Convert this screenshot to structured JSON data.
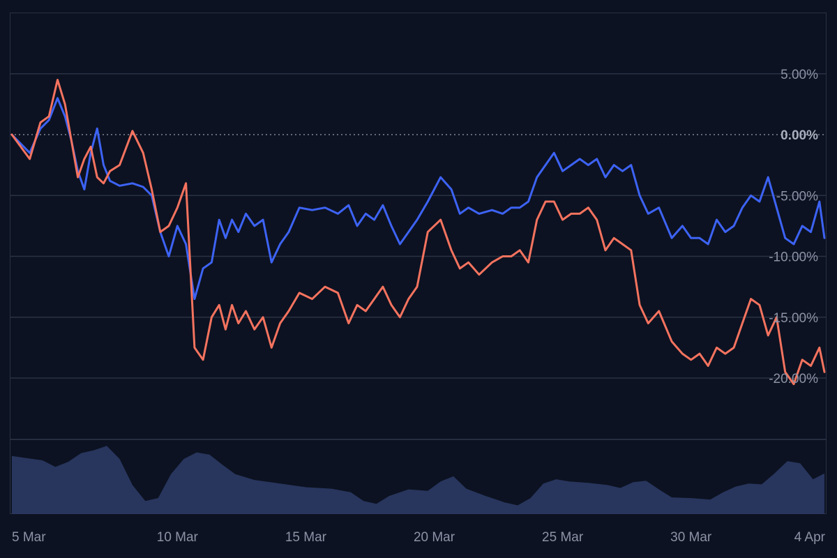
{
  "chart_data": {
    "type": "line",
    "title": "",
    "xlabel": "",
    "ylabel": "",
    "x_range": [
      "2025-03-04",
      "2025-04-04"
    ],
    "ylim": [
      -25,
      10
    ],
    "y_ticks": [
      "5.00%",
      "0.00%",
      "-5.00%",
      "-10.00%",
      "-15.00%",
      "-20.00%"
    ],
    "y_tick_values": [
      5,
      0,
      -5,
      -10,
      -15,
      -20
    ],
    "x_ticks": [
      "5 Mar",
      "10 Mar",
      "15 Mar",
      "20 Mar",
      "25 Mar",
      "30 Mar",
      "4 Apr"
    ],
    "x_tick_dates": [
      "2025-03-05",
      "2025-03-10",
      "2025-03-15",
      "2025-03-20",
      "2025-03-25",
      "2025-03-30",
      "2025-04-04"
    ],
    "zero_line": "dotted",
    "grid": "horizontal",
    "series": [
      {
        "color": "#3d63f5",
        "points": [
          [
            "2025-03-04",
            0.0
          ],
          [
            "2025-03-04",
            -1.5
          ],
          [
            "2025-03-05",
            0.5
          ],
          [
            "2025-03-05",
            1.2
          ],
          [
            "2025-03-05",
            3.0
          ],
          [
            "2025-03-06",
            1.5
          ],
          [
            "2025-03-06",
            -0.5
          ],
          [
            "2025-03-06",
            -3.0
          ],
          [
            "2025-03-06",
            -4.5
          ],
          [
            "2025-03-07",
            -1.5
          ],
          [
            "2025-03-07",
            0.5
          ],
          [
            "2025-03-07",
            -2.5
          ],
          [
            "2025-03-07",
            -3.8
          ],
          [
            "2025-03-08",
            -4.2
          ],
          [
            "2025-03-08",
            -4.0
          ],
          [
            "2025-03-09",
            -4.3
          ],
          [
            "2025-03-09",
            -5.0
          ],
          [
            "2025-03-09",
            -8.0
          ],
          [
            "2025-03-10",
            -10.0
          ],
          [
            "2025-03-10",
            -7.5
          ],
          [
            "2025-03-10",
            -9.0
          ],
          [
            "2025-03-11",
            -13.5
          ],
          [
            "2025-03-11",
            -11.0
          ],
          [
            "2025-03-11",
            -10.5
          ],
          [
            "2025-03-12",
            -7.0
          ],
          [
            "2025-03-12",
            -8.5
          ],
          [
            "2025-03-12",
            -7.0
          ],
          [
            "2025-03-12",
            -8.0
          ],
          [
            "2025-03-13",
            -6.5
          ],
          [
            "2025-03-13",
            -7.5
          ],
          [
            "2025-03-13",
            -7.0
          ],
          [
            "2025-03-14",
            -10.5
          ],
          [
            "2025-03-14",
            -9.0
          ],
          [
            "2025-03-14",
            -8.0
          ],
          [
            "2025-03-15",
            -6.0
          ],
          [
            "2025-03-15",
            -6.2
          ],
          [
            "2025-03-16",
            -6.0
          ],
          [
            "2025-03-16",
            -6.5
          ],
          [
            "2025-03-17",
            -5.8
          ],
          [
            "2025-03-17",
            -7.5
          ],
          [
            "2025-03-17",
            -6.5
          ],
          [
            "2025-03-18",
            -7.0
          ],
          [
            "2025-03-18",
            -5.8
          ],
          [
            "2025-03-18",
            -7.5
          ],
          [
            "2025-03-19",
            -9.0
          ],
          [
            "2025-03-19",
            -8.0
          ],
          [
            "2025-03-19",
            -7.0
          ],
          [
            "2025-03-20",
            -5.5
          ],
          [
            "2025-03-20",
            -3.5
          ],
          [
            "2025-03-21",
            -4.5
          ],
          [
            "2025-03-21",
            -6.5
          ],
          [
            "2025-03-21",
            -6.0
          ],
          [
            "2025-03-22",
            -6.5
          ],
          [
            "2025-03-22",
            -6.2
          ],
          [
            "2025-03-23",
            -6.5
          ],
          [
            "2025-03-23",
            -6.0
          ],
          [
            "2025-03-23",
            -6.0
          ],
          [
            "2025-03-24",
            -5.5
          ],
          [
            "2025-03-24",
            -3.5
          ],
          [
            "2025-03-24",
            -2.5
          ],
          [
            "2025-03-25",
            -1.5
          ],
          [
            "2025-03-25",
            -3.0
          ],
          [
            "2025-03-25",
            -2.5
          ],
          [
            "2025-03-26",
            -2.0
          ],
          [
            "2025-03-26",
            -2.5
          ],
          [
            "2025-03-26",
            -2.0
          ],
          [
            "2025-03-27",
            -3.5
          ],
          [
            "2025-03-27",
            -2.5
          ],
          [
            "2025-03-27",
            -3.0
          ],
          [
            "2025-03-28",
            -2.5
          ],
          [
            "2025-03-28",
            -5.0
          ],
          [
            "2025-03-28",
            -6.5
          ],
          [
            "2025-03-29",
            -6.0
          ],
          [
            "2025-03-29",
            -8.5
          ],
          [
            "2025-03-30",
            -7.5
          ],
          [
            "2025-03-30",
            -8.5
          ],
          [
            "2025-03-30",
            -8.5
          ],
          [
            "2025-03-31",
            -9.0
          ],
          [
            "2025-03-31",
            -7.0
          ],
          [
            "2025-03-31",
            -8.0
          ],
          [
            "2025-04-01",
            -7.5
          ],
          [
            "2025-04-01",
            -6.0
          ],
          [
            "2025-04-01",
            -5.0
          ],
          [
            "2025-04-02",
            -5.5
          ],
          [
            "2025-04-02",
            -3.5
          ],
          [
            "2025-04-02",
            -6.0
          ],
          [
            "2025-04-03",
            -8.5
          ],
          [
            "2025-04-03",
            -9.0
          ],
          [
            "2025-04-03",
            -7.5
          ],
          [
            "2025-04-04",
            -8.0
          ],
          [
            "2025-04-04",
            -5.5
          ],
          [
            "2025-04-04",
            -8.5
          ]
        ]
      },
      {
        "color": "#f5735f",
        "points": [
          [
            "2025-03-04",
            0.0
          ],
          [
            "2025-03-04",
            -2.0
          ],
          [
            "2025-03-05",
            1.0
          ],
          [
            "2025-03-05",
            1.5
          ],
          [
            "2025-03-05",
            4.5
          ],
          [
            "2025-03-06",
            2.5
          ],
          [
            "2025-03-06",
            -0.5
          ],
          [
            "2025-03-06",
            -3.5
          ],
          [
            "2025-03-06",
            -2.0
          ],
          [
            "2025-03-07",
            -1.0
          ],
          [
            "2025-03-07",
            -3.5
          ],
          [
            "2025-03-07",
            -4.0
          ],
          [
            "2025-03-07",
            -3.0
          ],
          [
            "2025-03-08",
            -2.5
          ],
          [
            "2025-03-08",
            0.3
          ],
          [
            "2025-03-09",
            -1.5
          ],
          [
            "2025-03-09",
            -4.5
          ],
          [
            "2025-03-09",
            -8.0
          ],
          [
            "2025-03-10",
            -7.5
          ],
          [
            "2025-03-10",
            -6.0
          ],
          [
            "2025-03-10",
            -4.0
          ],
          [
            "2025-03-11",
            -17.5
          ],
          [
            "2025-03-11",
            -18.5
          ],
          [
            "2025-03-11",
            -15.0
          ],
          [
            "2025-03-12",
            -14.0
          ],
          [
            "2025-03-12",
            -16.0
          ],
          [
            "2025-03-12",
            -14.0
          ],
          [
            "2025-03-12",
            -15.5
          ],
          [
            "2025-03-13",
            -14.5
          ],
          [
            "2025-03-13",
            -16.0
          ],
          [
            "2025-03-13",
            -15.0
          ],
          [
            "2025-03-14",
            -17.5
          ],
          [
            "2025-03-14",
            -15.5
          ],
          [
            "2025-03-14",
            -14.5
          ],
          [
            "2025-03-15",
            -13.0
          ],
          [
            "2025-03-15",
            -13.5
          ],
          [
            "2025-03-16",
            -12.5
          ],
          [
            "2025-03-16",
            -13.0
          ],
          [
            "2025-03-17",
            -15.5
          ],
          [
            "2025-03-17",
            -14.0
          ],
          [
            "2025-03-17",
            -14.5
          ],
          [
            "2025-03-18",
            -13.5
          ],
          [
            "2025-03-18",
            -12.5
          ],
          [
            "2025-03-18",
            -14.0
          ],
          [
            "2025-03-19",
            -15.0
          ],
          [
            "2025-03-19",
            -13.5
          ],
          [
            "2025-03-19",
            -12.5
          ],
          [
            "2025-03-20",
            -8.0
          ],
          [
            "2025-03-20",
            -7.0
          ],
          [
            "2025-03-21",
            -9.5
          ],
          [
            "2025-03-21",
            -11.0
          ],
          [
            "2025-03-21",
            -10.5
          ],
          [
            "2025-03-22",
            -11.5
          ],
          [
            "2025-03-22",
            -10.5
          ],
          [
            "2025-03-23",
            -10.0
          ],
          [
            "2025-03-23",
            -10.0
          ],
          [
            "2025-03-23",
            -9.5
          ],
          [
            "2025-03-24",
            -10.5
          ],
          [
            "2025-03-24",
            -7.0
          ],
          [
            "2025-03-24",
            -5.5
          ],
          [
            "2025-03-25",
            -5.5
          ],
          [
            "2025-03-25",
            -7.0
          ],
          [
            "2025-03-25",
            -6.5
          ],
          [
            "2025-03-26",
            -6.5
          ],
          [
            "2025-03-26",
            -6.0
          ],
          [
            "2025-03-26",
            -7.0
          ],
          [
            "2025-03-27",
            -9.5
          ],
          [
            "2025-03-27",
            -8.5
          ],
          [
            "2025-03-27",
            -9.0
          ],
          [
            "2025-03-28",
            -9.5
          ],
          [
            "2025-03-28",
            -14.0
          ],
          [
            "2025-03-28",
            -15.5
          ],
          [
            "2025-03-29",
            -14.5
          ],
          [
            "2025-03-29",
            -17.0
          ],
          [
            "2025-03-30",
            -18.0
          ],
          [
            "2025-03-30",
            -18.5
          ],
          [
            "2025-03-30",
            -18.0
          ],
          [
            "2025-03-31",
            -19.0
          ],
          [
            "2025-03-31",
            -17.5
          ],
          [
            "2025-03-31",
            -18.0
          ],
          [
            "2025-04-01",
            -17.5
          ],
          [
            "2025-04-01",
            -15.5
          ],
          [
            "2025-04-01",
            -13.5
          ],
          [
            "2025-04-02",
            -14.0
          ],
          [
            "2025-04-02",
            -16.5
          ],
          [
            "2025-04-02",
            -15.0
          ],
          [
            "2025-04-03",
            -19.5
          ],
          [
            "2025-04-03",
            -20.5
          ],
          [
            "2025-04-03",
            -18.5
          ],
          [
            "2025-04-04",
            -19.0
          ],
          [
            "2025-04-04",
            -17.5
          ],
          [
            "2025-04-04",
            -19.5
          ]
        ]
      }
    ],
    "volume_panel": {
      "color": "#2b3a64",
      "scale": [
        0,
        100
      ],
      "points": [
        [
          "2025-03-04",
          80
        ],
        [
          "2025-03-05",
          74
        ],
        [
          "2025-03-05",
          65
        ],
        [
          "2025-03-06",
          72
        ],
        [
          "2025-03-06",
          84
        ],
        [
          "2025-03-07",
          88
        ],
        [
          "2025-03-07",
          94
        ],
        [
          "2025-03-08",
          76
        ],
        [
          "2025-03-08",
          40
        ],
        [
          "2025-03-09",
          18
        ],
        [
          "2025-03-09",
          22
        ],
        [
          "2025-03-10",
          55
        ],
        [
          "2025-03-10",
          76
        ],
        [
          "2025-03-11",
          85
        ],
        [
          "2025-03-11",
          82
        ],
        [
          "2025-03-12",
          68
        ],
        [
          "2025-03-12",
          55
        ],
        [
          "2025-03-13",
          47
        ],
        [
          "2025-03-14",
          42
        ],
        [
          "2025-03-15",
          37
        ],
        [
          "2025-03-16",
          35
        ],
        [
          "2025-03-17",
          30
        ],
        [
          "2025-03-17",
          18
        ],
        [
          "2025-03-18",
          14
        ],
        [
          "2025-03-18",
          25
        ],
        [
          "2025-03-19",
          34
        ],
        [
          "2025-03-20",
          32
        ],
        [
          "2025-03-20",
          45
        ],
        [
          "2025-03-21",
          52
        ],
        [
          "2025-03-21",
          35
        ],
        [
          "2025-03-22",
          25
        ],
        [
          "2025-03-23",
          16
        ],
        [
          "2025-03-23",
          12
        ],
        [
          "2025-03-24",
          22
        ],
        [
          "2025-03-24",
          42
        ],
        [
          "2025-03-25",
          48
        ],
        [
          "2025-03-25",
          45
        ],
        [
          "2025-03-26",
          43
        ],
        [
          "2025-03-27",
          40
        ],
        [
          "2025-03-27",
          36
        ],
        [
          "2025-03-28",
          44
        ],
        [
          "2025-03-28",
          46
        ],
        [
          "2025-03-29",
          34
        ],
        [
          "2025-03-29",
          23
        ],
        [
          "2025-03-30",
          22
        ],
        [
          "2025-03-31",
          20
        ],
        [
          "2025-03-31",
          30
        ],
        [
          "2025-04-01",
          38
        ],
        [
          "2025-04-01",
          42
        ],
        [
          "2025-04-02",
          41
        ],
        [
          "2025-04-02",
          56
        ],
        [
          "2025-04-03",
          73
        ],
        [
          "2025-04-03",
          70
        ],
        [
          "2025-04-04",
          48
        ],
        [
          "2025-04-04",
          56
        ]
      ]
    }
  }
}
